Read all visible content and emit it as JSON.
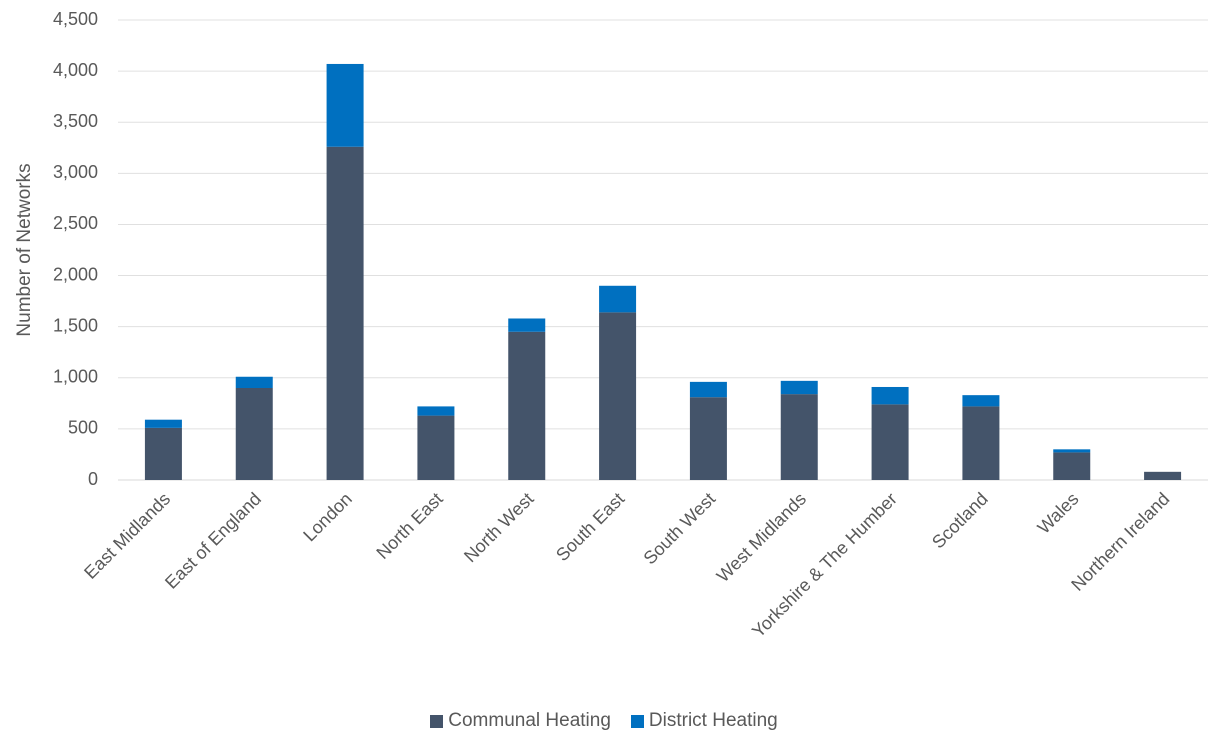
{
  "chart_data": {
    "type": "bar",
    "stacked": true,
    "title": "",
    "xlabel": "",
    "ylabel": "Number of Networks",
    "ylim": [
      0,
      4500
    ],
    "yticks": [
      0,
      500,
      1000,
      1500,
      2000,
      2500,
      3000,
      3500,
      4000,
      4500
    ],
    "ytick_labels": [
      "0",
      "500",
      "1,000",
      "1,500",
      "2,000",
      "2,500",
      "3,000",
      "3,500",
      "4,000",
      "4,500"
    ],
    "grid": true,
    "legend_position": "bottom",
    "categories": [
      "East Midlands",
      "East of England",
      "London",
      "North East",
      "North West",
      "South East",
      "South West",
      "West Midlands",
      "Yorkshire & The Humber",
      "Scotland",
      "Wales",
      "Northern Ireland"
    ],
    "series": [
      {
        "name": "Communal Heating",
        "color": "#44546a",
        "values": [
          510,
          900,
          3260,
          630,
          1450,
          1640,
          810,
          840,
          740,
          720,
          270,
          80
        ]
      },
      {
        "name": "District Heating",
        "color": "#0070c0",
        "values": [
          80,
          110,
          810,
          90,
          130,
          260,
          150,
          130,
          170,
          110,
          30,
          0
        ]
      }
    ]
  }
}
